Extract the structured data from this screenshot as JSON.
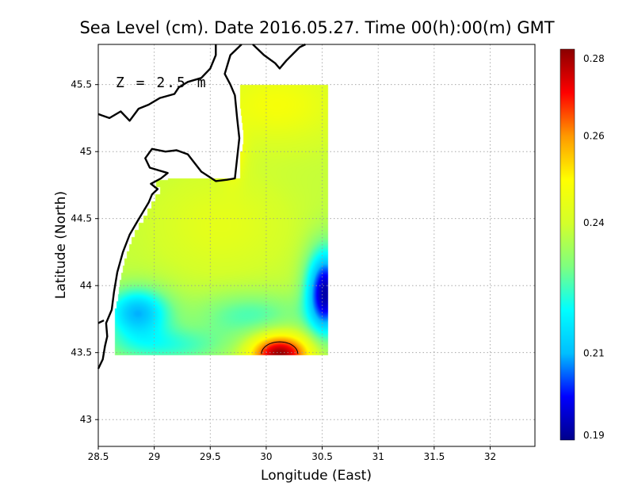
{
  "title": "Sea Level (cm). Date 2016.05.27. Time 00(h):00(m) GMT",
  "depth_label": "Z = 2.5 m",
  "x_axis": {
    "label": "Longitude (East)",
    "range": [
      28.5,
      32.4
    ],
    "ticks": [
      28.5,
      29,
      29.5,
      30,
      30.5,
      31,
      31.5,
      32
    ],
    "tick_labels": [
      "28.5",
      "29",
      "29.5",
      "30",
      "30.5",
      "31",
      "31.5",
      "32"
    ]
  },
  "y_axis": {
    "label": "Latitude (North)",
    "range": [
      42.8,
      45.8
    ],
    "ticks": [
      43,
      43.5,
      44,
      44.5,
      45,
      45.5
    ],
    "tick_labels": [
      "43",
      "43.5",
      "44",
      "44.5",
      "45",
      "45.5"
    ]
  },
  "colorbar": {
    "range": [
      0.19,
      0.28
    ],
    "ticks": [
      0.19,
      0.21,
      0.24,
      0.26,
      0.28
    ],
    "tick_labels": [
      "0.19",
      "0.21",
      "0.24",
      "0.26",
      "0.28"
    ],
    "colormap": [
      "#00008b",
      "#0000ff",
      "#00bfff",
      "#00ffff",
      "#7fff7f",
      "#d4ff2a",
      "#ffff00",
      "#ff9900",
      "#ff0000",
      "#8b0000"
    ]
  },
  "grid": true,
  "field": {
    "lon_range": [
      28.65,
      30.55
    ],
    "lat_range": [
      43.48,
      45.5
    ],
    "base_value": 0.238,
    "features": [
      {
        "lon": 30.12,
        "lat": 43.49,
        "amplitude": 0.042,
        "sigma_lon": 0.18,
        "sigma_lat": 0.1
      },
      {
        "lon": 30.53,
        "lat": 43.95,
        "amplitude": -0.045,
        "sigma_lon": 0.12,
        "sigma_lat": 0.22
      },
      {
        "lon": 28.85,
        "lat": 43.8,
        "amplitude": -0.028,
        "sigma_lon": 0.2,
        "sigma_lat": 0.13
      },
      {
        "lon": 29.1,
        "lat": 43.55,
        "amplitude": -0.014,
        "sigma_lon": 0.4,
        "sigma_lat": 0.1
      },
      {
        "lon": 29.85,
        "lat": 43.78,
        "amplitude": -0.012,
        "sigma_lon": 0.35,
        "sigma_lat": 0.12
      },
      {
        "lon": 30.1,
        "lat": 45.35,
        "amplitude": 0.01,
        "sigma_lon": 0.4,
        "sigma_lat": 0.2
      },
      {
        "lon": 29.7,
        "lat": 45.0,
        "amplitude": 0.012,
        "sigma_lon": 0.08,
        "sigma_lat": 0.15
      },
      {
        "lon": 29.6,
        "lat": 44.45,
        "amplitude": 0.006,
        "sigma_lon": 0.4,
        "sigma_lat": 0.25
      }
    ]
  },
  "contour_level": 0.265,
  "coastline": [
    [
      [
        28.5,
        43.38
      ],
      [
        28.54,
        43.45
      ],
      [
        28.56,
        43.55
      ],
      [
        28.58,
        43.62
      ],
      [
        28.57,
        43.72
      ],
      [
        28.62,
        43.82
      ],
      [
        28.64,
        43.95
      ],
      [
        28.67,
        44.1
      ],
      [
        28.72,
        44.25
      ],
      [
        28.78,
        44.38
      ],
      [
        28.85,
        44.48
      ],
      [
        28.9,
        44.55
      ],
      [
        28.95,
        44.62
      ],
      [
        28.98,
        44.68
      ],
      [
        29.03,
        44.72
      ],
      [
        28.97,
        44.76
      ],
      [
        29.06,
        44.8
      ],
      [
        29.12,
        44.84
      ],
      [
        28.96,
        44.88
      ],
      [
        28.92,
        44.95
      ],
      [
        28.98,
        45.02
      ],
      [
        29.1,
        45.0
      ],
      [
        29.2,
        45.01
      ],
      [
        29.3,
        44.98
      ],
      [
        29.42,
        44.85
      ],
      [
        29.55,
        44.78
      ],
      [
        29.65,
        44.79
      ],
      [
        29.72,
        44.8
      ],
      [
        29.74,
        44.95
      ],
      [
        29.76,
        45.1
      ],
      [
        29.74,
        45.25
      ],
      [
        29.72,
        45.42
      ],
      [
        29.68,
        45.5
      ],
      [
        29.63,
        45.58
      ],
      [
        29.68,
        45.72
      ],
      [
        29.78,
        45.8
      ]
    ],
    [
      [
        28.5,
        45.28
      ],
      [
        28.6,
        45.25
      ],
      [
        28.7,
        45.3
      ],
      [
        28.78,
        45.23
      ],
      [
        28.86,
        45.32
      ],
      [
        28.95,
        45.35
      ],
      [
        29.05,
        45.4
      ],
      [
        29.18,
        45.43
      ],
      [
        29.22,
        45.48
      ],
      [
        29.3,
        45.52
      ],
      [
        29.42,
        45.55
      ],
      [
        29.5,
        45.62
      ],
      [
        29.55,
        45.72
      ],
      [
        29.55,
        45.8
      ]
    ],
    [
      [
        29.88,
        45.8
      ],
      [
        29.98,
        45.72
      ],
      [
        30.08,
        45.66
      ],
      [
        30.12,
        45.62
      ],
      [
        30.18,
        45.68
      ],
      [
        30.3,
        45.78
      ],
      [
        30.35,
        45.8
      ]
    ],
    [
      [
        28.5,
        43.72
      ],
      [
        28.55,
        43.74
      ]
    ]
  ]
}
